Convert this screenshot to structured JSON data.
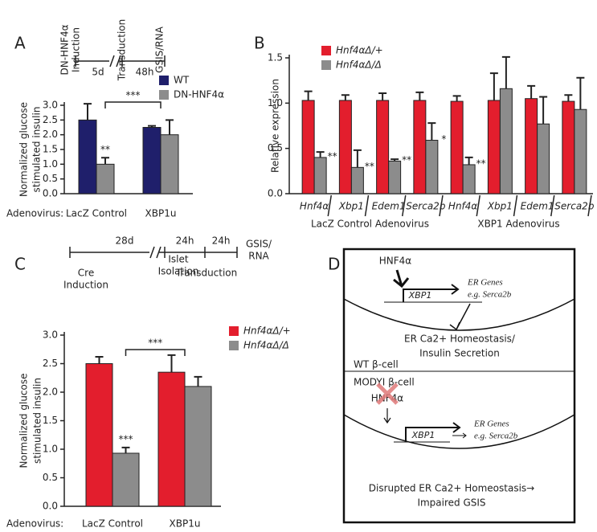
{
  "chart_data": [
    {
      "type": "bar",
      "panel": "A",
      "timeline": {
        "labels": [
          [
            "DN-HNF4α",
            "Induction"
          ],
          [
            "Transduction"
          ],
          [
            "GSIS/RNA"
          ]
        ],
        "durations": [
          "5d",
          "48h"
        ]
      },
      "ylabel": [
        "Normalized glucose",
        "stimulated insulin"
      ],
      "xlabel": "Adenovirus:",
      "categories": [
        "LacZ Control",
        "XBP1u"
      ],
      "series": [
        {
          "name": "WT",
          "color": "#1f1f6b",
          "values": [
            2.5,
            2.25
          ],
          "errors": [
            0.55,
            0.05
          ],
          "significance": [
            null,
            null
          ]
        },
        {
          "name": "DN-HNF4α",
          "color": "#8c8c8c",
          "values": [
            1.0,
            2.0
          ],
          "errors": [
            0.22,
            0.5
          ],
          "significance": [
            "**",
            null
          ]
        }
      ],
      "comparison": "***",
      "ylim": [
        0,
        3
      ],
      "yticks": [
        {
          "value": 0,
          "label": "0.0"
        },
        0.5,
        {
          "value": 1,
          "label": "1.0"
        },
        1.5,
        {
          "value": 2,
          "label": "2.0"
        },
        2.5,
        {
          "value": 3,
          "label": "3.0"
        }
      ]
    },
    {
      "type": "bar",
      "panel": "B",
      "ylabel": [
        "Relative expression"
      ],
      "categories": [
        "Hnf4α",
        "Xbp1",
        "Edem1",
        "Serca2b",
        "Hnf4α",
        "Xbp1",
        "Edem1",
        "Serca2b"
      ],
      "groups": [
        "LacZ Control Adenovirus",
        "XBP1 Adenovirus"
      ],
      "series": [
        {
          "name": "Hnf4αΔ/+",
          "color": "#e31e2d",
          "values": [
            1.03,
            1.03,
            1.03,
            1.03,
            1.02,
            1.03,
            1.05,
            1.02
          ],
          "errors": [
            0.1,
            0.06,
            0.08,
            0.09,
            0.06,
            0.3,
            0.14,
            0.07
          ],
          "significance": [
            null,
            null,
            null,
            null,
            null,
            null,
            null,
            null
          ]
        },
        {
          "name": "Hnf4αΔ/Δ",
          "color": "#8c8c8c",
          "values": [
            0.4,
            0.29,
            0.36,
            0.59,
            0.32,
            1.16,
            0.77,
            0.93
          ],
          "errors": [
            0.06,
            0.19,
            0.02,
            0.19,
            0.08,
            0.35,
            0.3,
            0.35
          ],
          "significance": [
            "**",
            "**",
            "**",
            "*",
            "**",
            null,
            null,
            null
          ]
        }
      ],
      "ylim": [
        0,
        1.5
      ],
      "yticks": [
        {
          "value": 0,
          "label": "0.0"
        },
        0.5,
        {
          "value": 1,
          "label": "1.0"
        },
        1.5
      ]
    },
    {
      "type": "bar",
      "panel": "C",
      "timeline": {
        "labels": [
          [
            "Cre",
            "Induction"
          ],
          [
            "Islet",
            "Isolation"
          ],
          [
            "Transduction"
          ],
          [
            "GSIS/",
            "RNA"
          ]
        ],
        "durations": [
          "28d",
          "24h",
          "24h"
        ]
      },
      "ylabel": [
        "Normalized glucose",
        "stimulated insulin"
      ],
      "xlabel": "Adenovirus:",
      "categories": [
        "LacZ Control",
        "XBP1u"
      ],
      "series": [
        {
          "name": "Hnf4αΔ/+",
          "color": "#e31e2d",
          "values": [
            2.5,
            2.35
          ],
          "errors": [
            0.12,
            0.3
          ],
          "significance": [
            null,
            null
          ]
        },
        {
          "name": "Hnf4αΔ/Δ",
          "color": "#8c8c8c",
          "values": [
            0.93,
            2.1
          ],
          "errors": [
            0.1,
            0.17
          ],
          "significance": [
            "***",
            null
          ]
        }
      ],
      "comparison": "***",
      "ylim": [
        0,
        3
      ],
      "yticks": [
        {
          "value": 0,
          "label": "0.0"
        },
        0.5,
        {
          "value": 1,
          "label": "1.0"
        },
        1.5,
        {
          "value": 2,
          "label": "2.0"
        },
        2.5,
        {
          "value": 3,
          "label": "3.0"
        }
      ]
    }
  ],
  "diagram": {
    "panel": "D",
    "wt": {
      "factor": "HNF4α",
      "gene": "XBP1",
      "targets": [
        "ER Genes",
        "e.g. Serca2b"
      ],
      "outcome": [
        "ER Ca2+ Homeostasis/",
        "Insulin Secretion"
      ],
      "cell": "WT β-cell"
    },
    "mody": {
      "cell": "MODYI β-cell",
      "factor": "HNF4α",
      "gene": "XBP1",
      "targets": [
        "ER Genes",
        "e.g. Serca2b"
      ],
      "outcome": [
        "Disrupted ER Ca2+ Homeostasis→",
        "Impaired GSIS"
      ]
    }
  }
}
